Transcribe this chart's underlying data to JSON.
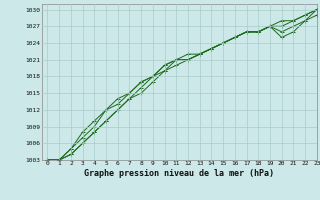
{
  "title": "Graphe pression niveau de la mer (hPa)",
  "background_color": "#cce8e8",
  "grid_color": "#aacccc",
  "line_color": "#1a6b1a",
  "marker_color": "#1a6b1a",
  "xlim": [
    -0.5,
    23
  ],
  "ylim": [
    1003,
    1031
  ],
  "xticks": [
    0,
    1,
    2,
    3,
    4,
    5,
    6,
    7,
    8,
    9,
    10,
    11,
    12,
    13,
    14,
    15,
    16,
    17,
    18,
    19,
    20,
    21,
    22,
    23
  ],
  "yticks": [
    1003,
    1006,
    1009,
    1012,
    1015,
    1018,
    1021,
    1024,
    1027,
    1030
  ],
  "series": [
    [
      1003,
      1003,
      1004,
      1006,
      1008,
      1010,
      1012,
      1014,
      1015,
      1017,
      1019,
      1020,
      1021,
      1022,
      1023,
      1024,
      1025,
      1026,
      1026,
      1027,
      1028,
      1028,
      1029,
      1030
    ],
    [
      1003,
      1003,
      1004,
      1006,
      1008,
      1010,
      1012,
      1014,
      1016,
      1018,
      1020,
      1021,
      1022,
      1022,
      1023,
      1024,
      1025,
      1026,
      1026,
      1027,
      1025,
      1026,
      1028,
      1029
    ],
    [
      1003,
      1003,
      1005,
      1007,
      1009,
      1012,
      1013,
      1015,
      1017,
      1018,
      1019,
      1021,
      1021,
      1022,
      1023,
      1024,
      1025,
      1026,
      1026,
      1027,
      1027,
      1028,
      1029,
      1030
    ],
    [
      1003,
      1003,
      1005,
      1008,
      1010,
      1012,
      1014,
      1015,
      1017,
      1018,
      1020,
      1021,
      1021,
      1022,
      1023,
      1024,
      1025,
      1026,
      1026,
      1027,
      1026,
      1027,
      1028,
      1030
    ]
  ]
}
